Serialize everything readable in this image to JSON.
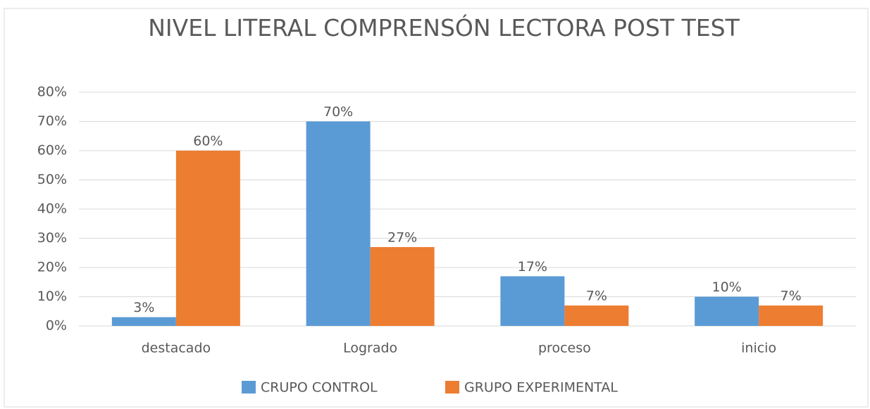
{
  "chart_data": {
    "type": "bar",
    "title": "NIVEL LITERAL COMPRENSÓN LECTORA POST TEST",
    "categories": [
      "destacado",
      "Logrado",
      "proceso",
      "inicio"
    ],
    "series": [
      {
        "name": "CRUPO CONTROL",
        "color": "#5b9bd5",
        "values": [
          3,
          70,
          17,
          10
        ],
        "value_labels": [
          "3%",
          "70%",
          "17%",
          "10%"
        ]
      },
      {
        "name": "GRUPO EXPERIMENTAL",
        "color": "#ed7d31",
        "values": [
          60,
          27,
          7,
          7
        ],
        "value_labels": [
          "60%",
          "27%",
          "7%",
          "7%"
        ]
      }
    ],
    "ylim": [
      0,
      80
    ],
    "yticks": [
      {
        "value": 0,
        "label": "0%"
      },
      {
        "value": 10,
        "label": "10%"
      },
      {
        "value": 20,
        "label": "20%"
      },
      {
        "value": 30,
        "label": "30%"
      },
      {
        "value": 40,
        "label": "40%"
      },
      {
        "value": 50,
        "label": "50%"
      },
      {
        "value": 60,
        "label": "60%"
      },
      {
        "value": 70,
        "label": "70%"
      },
      {
        "value": 80,
        "label": "80%"
      }
    ],
    "grid": true,
    "legend": "bottom"
  }
}
